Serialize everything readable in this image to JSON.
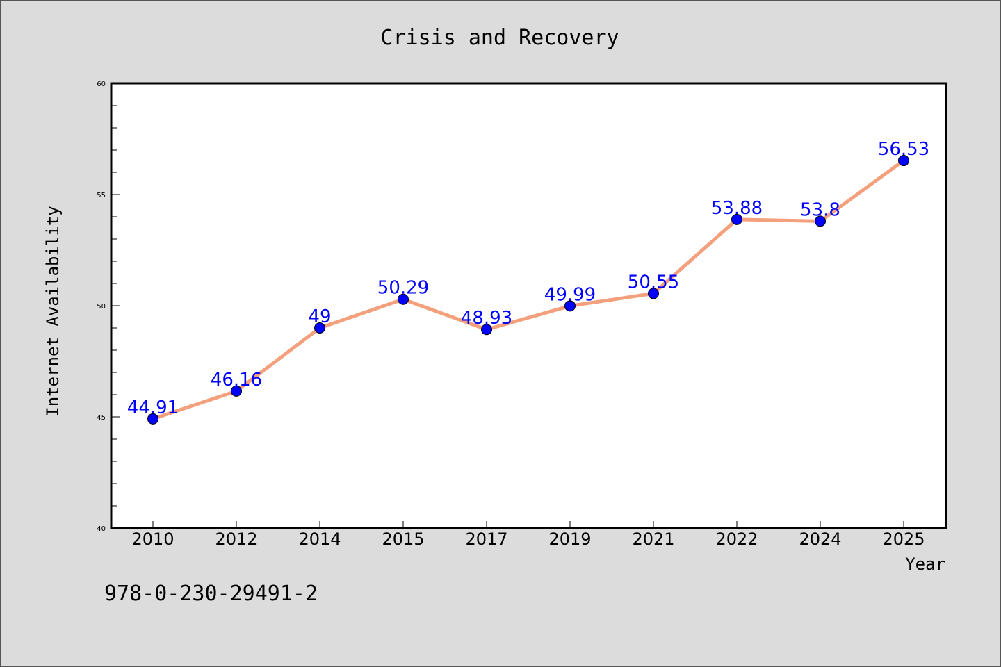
{
  "chart_data": {
    "type": "line",
    "title": "Crisis and Recovery",
    "xlabel": "Year",
    "ylabel": "Internet Availability",
    "categories": [
      "2010",
      "2012",
      "2014",
      "2015",
      "2017",
      "2019",
      "2021",
      "2022",
      "2024",
      "2025"
    ],
    "series": [
      {
        "values": [
          44.91,
          46.16,
          49,
          50.29,
          48.93,
          49.99,
          50.55,
          53.88,
          53.8,
          56.53
        ],
        "labels": [
          "44.91",
          "46.16",
          "49",
          "50.29",
          "48.93",
          "49.99",
          "50.55",
          "53.88",
          "53.8",
          "56.53"
        ],
        "line_color": "#f4a07c",
        "marker_color": "#0000ff"
      }
    ],
    "ylim": [
      40,
      60
    ],
    "y_ticks": [
      40,
      45,
      50,
      55,
      60
    ],
    "grid": false,
    "legend": "none"
  },
  "footer": {
    "isbn": "978-0-230-29491-2"
  }
}
